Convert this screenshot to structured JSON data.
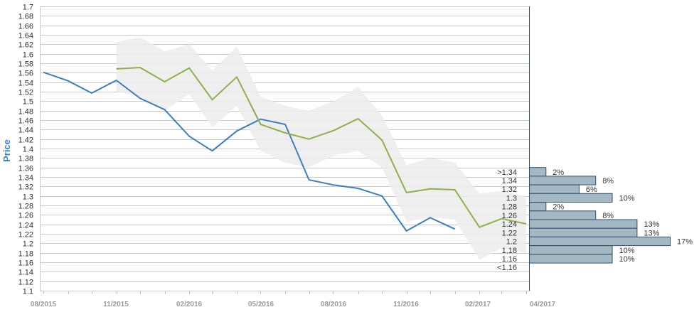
{
  "chart_data": {
    "type": "line",
    "ylabel": "Price",
    "xlabel": "",
    "ylim": [
      1.1,
      1.7
    ],
    "y_ticks": [
      "1.1",
      "1.12",
      "1.14",
      "1.16",
      "1.18",
      "1.2",
      "1.22",
      "1.24",
      "1.26",
      "1.28",
      "1.3",
      "1.32",
      "1.34",
      "1.36",
      "1.38",
      "1.4",
      "1.42",
      "1.44",
      "1.46",
      "1.48",
      "1.5",
      "1.52",
      "1.54",
      "1.56",
      "1.58",
      "1.6",
      "1.62",
      "1.64",
      "1.66",
      "1.68",
      "1.7"
    ],
    "x_ticks": [
      "08/2015",
      "11/2015",
      "02/2016",
      "05/2016",
      "08/2016",
      "11/2016",
      "02/2017",
      "04/2017"
    ],
    "grid": true,
    "series": [
      {
        "color": "#3a7fc4",
        "x": [
          "2015-08",
          "2015-09",
          "2015-10",
          "2015-11",
          "2015-12",
          "2016-01",
          "2016-02",
          "2016-03",
          "2016-04",
          "2016-05",
          "2016-06",
          "2016-07",
          "2016-08",
          "2016-09",
          "2016-10",
          "2016-11",
          "2016-12",
          "2017-01"
        ],
        "values": [
          1.561,
          1.543,
          1.517,
          1.544,
          1.506,
          1.482,
          1.426,
          1.395,
          1.437,
          1.462,
          1.451,
          1.334,
          1.323,
          1.316,
          1.3,
          1.226,
          1.254,
          1.23
        ]
      },
      {
        "color": "#8db04a",
        "x": [
          "2015-11",
          "2015-12",
          "2016-01",
          "2016-02",
          "2016-03",
          "2016-04",
          "2016-05",
          "2016-06",
          "2016-07",
          "2016-08",
          "2016-09",
          "2016-10",
          "2016-11",
          "2016-12",
          "2017-01",
          "2017-02",
          "2017-03",
          "2017-04"
        ],
        "values": [
          1.568,
          1.571,
          1.541,
          1.57,
          1.503,
          1.551,
          1.451,
          1.433,
          1.42,
          1.438,
          1.463,
          1.418,
          1.307,
          1.315,
          1.313,
          1.234,
          1.252,
          1.241
        ]
      }
    ],
    "band": {
      "color": "#ececec",
      "x": [
        "2015-11",
        "2015-12",
        "2016-01",
        "2016-02",
        "2016-03",
        "2016-04",
        "2016-05",
        "2016-06",
        "2016-07",
        "2016-08",
        "2016-09",
        "2016-10",
        "2016-11",
        "2016-12",
        "2017-01",
        "2017-02",
        "2017-03",
        "2017-04"
      ],
      "upper": [
        1.625,
        1.635,
        1.605,
        1.62,
        1.565,
        1.615,
        1.51,
        1.49,
        1.48,
        1.5,
        1.53,
        1.47,
        1.365,
        1.38,
        1.37,
        1.305,
        1.31,
        1.3
      ],
      "lower": [
        1.52,
        1.51,
        1.48,
        1.515,
        1.445,
        1.49,
        1.395,
        1.37,
        1.36,
        1.385,
        1.395,
        1.36,
        1.245,
        1.255,
        1.25,
        1.165,
        1.19,
        1.18
      ]
    },
    "histogram": {
      "color": "#a3b8c3",
      "bins": [
        ">1.34",
        "1.34",
        "1.32",
        "1.3",
        "1.28",
        "1.26",
        "1.24",
        "1.22",
        "1.2",
        "1.18",
        "1.16",
        "<1.16"
      ],
      "values": [
        2,
        8,
        6,
        10,
        2,
        8,
        13,
        13,
        17,
        10,
        10,
        0
      ],
      "labels": [
        "2%",
        "8%",
        "6%",
        "10%",
        "2%",
        "8%",
        "13%",
        "13%",
        "17%",
        "10%",
        "10%",
        ""
      ]
    }
  }
}
